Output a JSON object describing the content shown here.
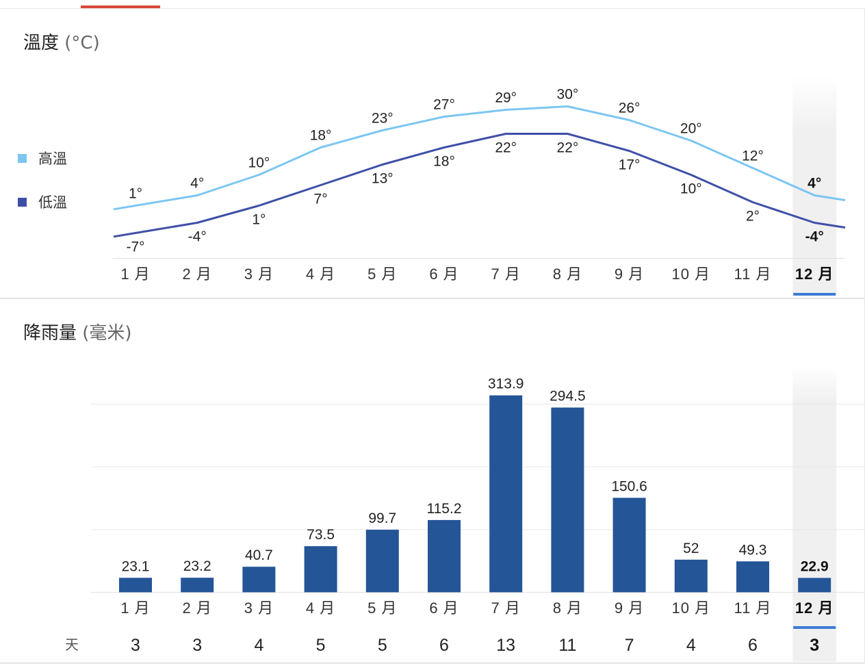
{
  "temperature_section": {
    "title": "溫度",
    "unit": "(°C)",
    "legend": [
      {
        "label": "高溫",
        "color": "#7cc6f2"
      },
      {
        "label": "低溫",
        "color": "#3f4fa8"
      }
    ]
  },
  "precip_section": {
    "title": "降雨量",
    "unit": "(毫米)",
    "days_label": "天"
  },
  "selected_month_index": 11,
  "colors": {
    "high_line": "#7cc6f2",
    "low_line": "#3f4fa8",
    "bar": "#245597",
    "selection_underline": "#3d7bd6",
    "tab_indicator": "#d9493b"
  },
  "chart_data": [
    {
      "type": "line",
      "categories": [
        "1 月",
        "2 月",
        "3 月",
        "4 月",
        "5 月",
        "6 月",
        "7 月",
        "8 月",
        "9 月",
        "10 月",
        "11 月",
        "12 月"
      ],
      "series": [
        {
          "name": "高溫",
          "values": [
            1,
            4,
            10,
            18,
            23,
            27,
            29,
            30,
            26,
            20,
            12,
            4
          ],
          "labels": [
            "1°",
            "4°",
            "10°",
            "18°",
            "23°",
            "27°",
            "29°",
            "30°",
            "26°",
            "20°",
            "12°",
            "4°"
          ]
        },
        {
          "name": "低溫",
          "values": [
            -7,
            -4,
            1,
            7,
            13,
            18,
            22,
            22,
            17,
            10,
            2,
            -4
          ],
          "labels": [
            "-7°",
            "-4°",
            "1°",
            "7°",
            "13°",
            "18°",
            "22°",
            "22°",
            "17°",
            "10°",
            "2°",
            "-4°"
          ]
        }
      ],
      "grid": false
    },
    {
      "type": "bar",
      "categories": [
        "1 月",
        "2 月",
        "3 月",
        "4 月",
        "5 月",
        "6 月",
        "7 月",
        "8 月",
        "9 月",
        "10 月",
        "11 月",
        "12 月"
      ],
      "values": [
        23.1,
        23.2,
        40.7,
        73.5,
        99.7,
        115.2,
        313.9,
        294.5,
        150.6,
        52,
        49.3,
        22.9
      ],
      "labels": [
        "23.1",
        "23.2",
        "40.7",
        "73.5",
        "99.7",
        "115.2",
        "313.9",
        "294.5",
        "150.6",
        "52",
        "49.3",
        "22.9"
      ],
      "days": [
        "3",
        "3",
        "4",
        "5",
        "5",
        "6",
        "13",
        "11",
        "7",
        "4",
        "6",
        "3"
      ],
      "ylim": [
        0,
        300
      ],
      "grid": true
    }
  ]
}
